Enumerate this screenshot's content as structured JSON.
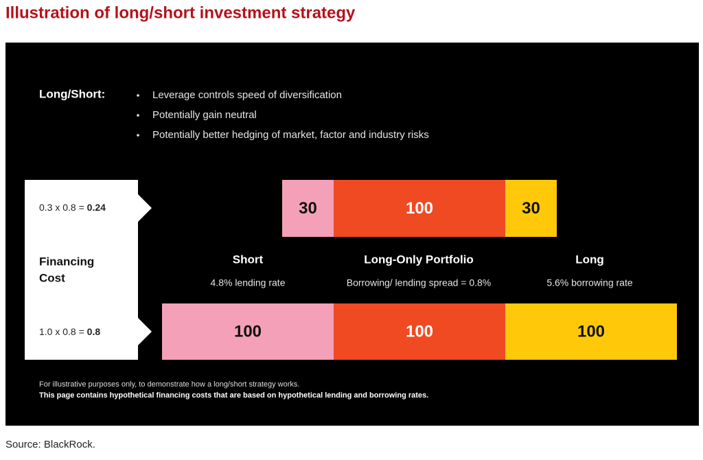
{
  "title": "Illustration of long/short investment strategy",
  "panel": {
    "heading": "Long/Short:",
    "bullets": [
      "Leverage controls speed of diversification",
      "Potentially gain neutral",
      "Potentially better hedging of market, factor and industry risks"
    ],
    "formulas": [
      {
        "text": "0.3 x 0.8 = ",
        "result": "0.24"
      },
      {
        "text": "1.0 x 0.8 = ",
        "result": "0.8"
      }
    ],
    "financing_label": [
      "Financing",
      "Cost"
    ],
    "bars": [
      {
        "segments": [
          {
            "value": 30,
            "color": "#f5a0b9",
            "text_color": "#111111"
          },
          {
            "value": 100,
            "color": "#f04a23",
            "text_color": "#ffffff"
          },
          {
            "value": 30,
            "color": "#ffc90a",
            "text_color": "#111111"
          }
        ]
      },
      {
        "segments": [
          {
            "value": 100,
            "color": "#f5a0b9",
            "text_color": "#111111"
          },
          {
            "value": 100,
            "color": "#f04a23",
            "text_color": "#ffffff"
          },
          {
            "value": 100,
            "color": "#ffc90a",
            "text_color": "#111111"
          }
        ]
      }
    ],
    "columns": [
      {
        "name": "Short",
        "note": "4.8% lending rate"
      },
      {
        "name": "Long-Only Portfolio",
        "note": "Borrowing/ lending spread = 0.8%"
      },
      {
        "name": "Long",
        "note": "5.6% borrowing rate"
      }
    ],
    "footnote": "For illustrative purposes only, to demonstrate how a long/short strategy works.",
    "footnote_bold": "This page contains hypothetical financing costs that are based on hypothetical lending and borrowing rates."
  },
  "source": "Source: BlackRock."
}
